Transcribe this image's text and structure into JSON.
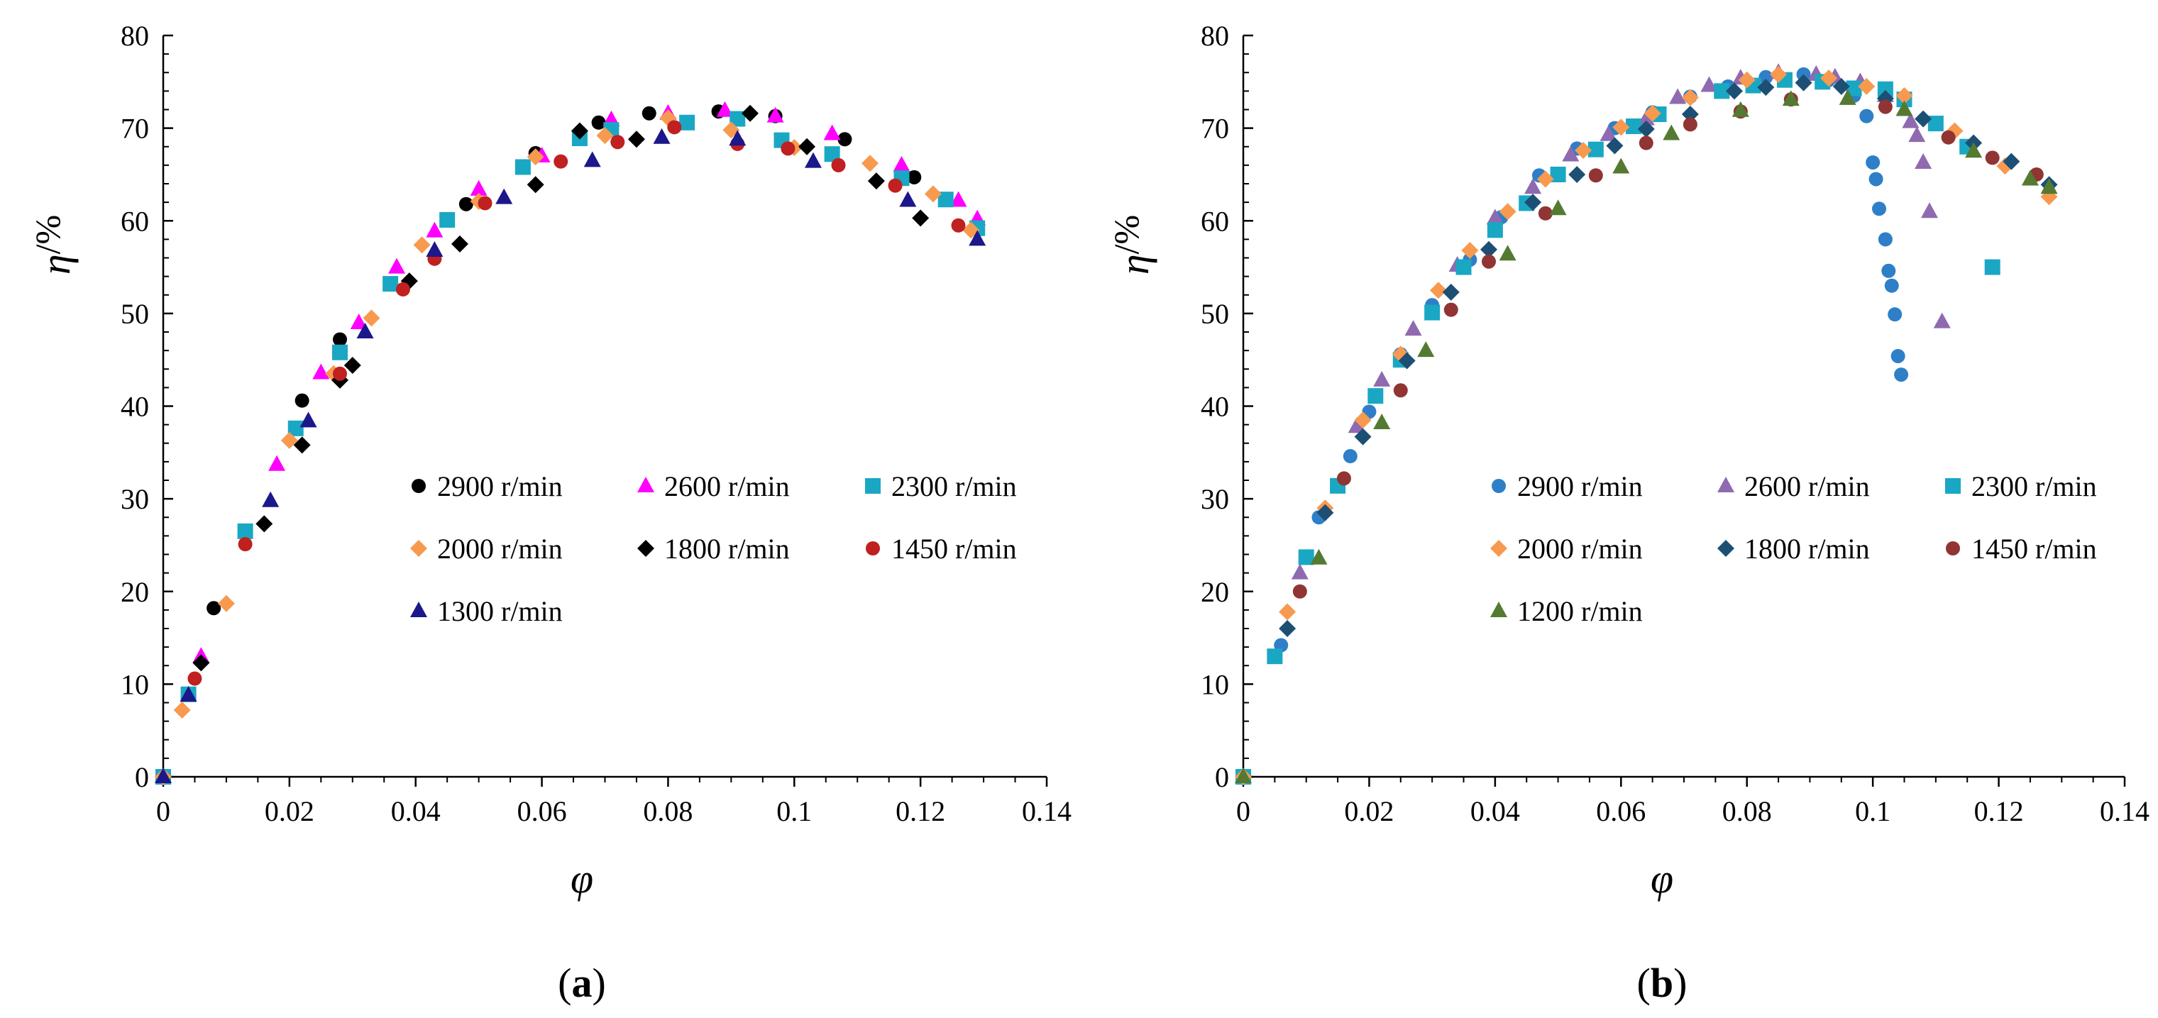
{
  "figure": {
    "colors": {
      "black": "#000000",
      "magenta": "#ff00ff",
      "teal": "#1aa7c4",
      "orange": "#f79a4f",
      "darkred": "#c0201f",
      "navy": "#1c178a",
      "blue": "#2e7fc7",
      "purple": "#8f6ab0",
      "darkblue": "#1d4f74",
      "maroon": "#913434",
      "green": "#547a31"
    }
  },
  "chart_data": [
    {
      "type": "scatter",
      "panel_label": "(a)",
      "panel_letter": "a",
      "xlabel": "φ",
      "ylabel_symbol": "η",
      "ylabel_unit": "/%",
      "xlim": [
        0,
        0.14
      ],
      "ylim": [
        0,
        80
      ],
      "xticks": [
        0,
        0.02,
        0.04,
        0.06,
        0.08,
        0.1,
        0.12,
        0.14
      ],
      "xtick_labels": [
        "0",
        "0.02",
        "0.04",
        "0.06",
        "0.08",
        "0.1",
        "0.12",
        "0.14"
      ],
      "yticks": [
        0,
        10,
        20,
        30,
        40,
        50,
        60,
        70,
        80
      ],
      "ytick_labels": [
        "0",
        "10",
        "20",
        "30",
        "40",
        "50",
        "60",
        "70",
        "80"
      ],
      "series": [
        {
          "name": "2900 r/min",
          "marker": "circle",
          "color": "#000000",
          "x": [
            0,
            0.008,
            0.022,
            0.028,
            0.048,
            0.059,
            0.069,
            0.077,
            0.088,
            0.097,
            0.108,
            0.119
          ],
          "y": [
            0,
            18.2,
            40.6,
            47.2,
            61.8,
            67.3,
            70.6,
            71.6,
            71.8,
            71.3,
            68.8,
            64.7
          ]
        },
        {
          "name": "2600 r/min",
          "marker": "triangle",
          "color": "#ff00ff",
          "x": [
            0,
            0.006,
            0.018,
            0.025,
            0.031,
            0.037,
            0.043,
            0.05,
            0.06,
            0.071,
            0.08,
            0.089,
            0.097,
            0.106,
            0.117,
            0.126,
            0.129
          ],
          "y": [
            0,
            13.0,
            33.7,
            43.6,
            49.0,
            55.0,
            58.9,
            63.4,
            67.0,
            70.9,
            71.6,
            71.9,
            71.3,
            69.4,
            66.0,
            62.2,
            60.2
          ]
        },
        {
          "name": "2300 r/min",
          "marker": "square",
          "color": "#1aa7c4",
          "x": [
            0,
            0.004,
            0.013,
            0.021,
            0.028,
            0.036,
            0.045,
            0.057,
            0.066,
            0.071,
            0.083,
            0.091,
            0.098,
            0.106,
            0.117,
            0.124,
            0.129
          ],
          "y": [
            0,
            8.9,
            26.5,
            37.6,
            45.8,
            53.2,
            60.1,
            65.8,
            68.9,
            69.8,
            70.6,
            71.0,
            68.7,
            67.2,
            64.6,
            62.3,
            59.2
          ]
        },
        {
          "name": "2000 r/min",
          "marker": "diamond",
          "color": "#f79a4f",
          "x": [
            0,
            0.003,
            0.01,
            0.02,
            0.027,
            0.033,
            0.041,
            0.05,
            0.059,
            0.07,
            0.08,
            0.09,
            0.1,
            0.112,
            0.122,
            0.128
          ],
          "y": [
            0,
            7.2,
            18.7,
            36.3,
            43.5,
            49.5,
            57.4,
            62.1,
            66.9,
            69.2,
            71.1,
            69.8,
            67.9,
            66.2,
            62.9,
            59.0
          ]
        },
        {
          "name": "1800 r/min",
          "marker": "diamond",
          "color": "#000000",
          "x": [
            0.006,
            0.016,
            0.022,
            0.028,
            0.03,
            0.039,
            0.047,
            0.059,
            0.066,
            0.075,
            0.093,
            0.102,
            0.113,
            0.12
          ],
          "y": [
            12.3,
            27.3,
            35.8,
            42.8,
            44.4,
            53.5,
            57.5,
            63.9,
            69.7,
            68.8,
            71.6,
            68.0,
            64.3,
            60.3
          ]
        },
        {
          "name": "1450 r/min",
          "marker": "circle",
          "color": "#c0201f",
          "x": [
            0.005,
            0.013,
            0.028,
            0.038,
            0.043,
            0.051,
            0.063,
            0.072,
            0.081,
            0.091,
            0.099,
            0.107,
            0.116,
            0.126
          ],
          "y": [
            10.6,
            25.1,
            43.5,
            52.6,
            55.9,
            61.9,
            66.4,
            68.5,
            70.1,
            68.3,
            67.8,
            66.0,
            63.8,
            59.5
          ]
        },
        {
          "name": "1300 r/min",
          "marker": "triangle",
          "color": "#1c178a",
          "x": [
            0,
            0.004,
            0.017,
            0.023,
            0.032,
            0.043,
            0.054,
            0.068,
            0.079,
            0.091,
            0.103,
            0.118,
            0.129
          ],
          "y": [
            0,
            8.8,
            29.8,
            38.4,
            48.0,
            56.8,
            62.5,
            66.5,
            69.0,
            68.8,
            66.4,
            62.2,
            58.0
          ]
        }
      ],
      "legend": {
        "placement": "center-right",
        "columns": 3
      }
    },
    {
      "type": "scatter",
      "panel_label": "(b)",
      "panel_letter": "b",
      "xlabel": "φ",
      "ylabel_symbol": "η",
      "ylabel_unit": "/%",
      "xlim": [
        0,
        0.14
      ],
      "ylim": [
        0,
        80
      ],
      "xticks": [
        0,
        0.02,
        0.04,
        0.06,
        0.08,
        0.1,
        0.12,
        0.14
      ],
      "xtick_labels": [
        "0",
        "0.02",
        "0.04",
        "0.06",
        "0.08",
        "0.1",
        "0.12",
        "0.14"
      ],
      "yticks": [
        0,
        10,
        20,
        30,
        40,
        50,
        60,
        70,
        80
      ],
      "ytick_labels": [
        "0",
        "10",
        "20",
        "30",
        "40",
        "50",
        "60",
        "70",
        "80"
      ],
      "series": [
        {
          "name": "2900 r/min",
          "marker": "circle",
          "color": "#2e7fc7",
          "x": [
            0,
            0.006,
            0.012,
            0.017,
            0.02,
            0.025,
            0.03,
            0.036,
            0.041,
            0.047,
            0.053,
            0.059,
            0.065,
            0.071,
            0.077,
            0.083,
            0.089,
            0.093,
            0.097,
            0.099,
            0.1,
            0.1005,
            0.101,
            0.102,
            0.1025,
            0.103,
            0.1035,
            0.104,
            0.1045
          ],
          "y": [
            0,
            14.2,
            28.0,
            34.6,
            39.4,
            45.6,
            50.9,
            55.8,
            60.4,
            64.9,
            67.8,
            70.0,
            71.7,
            73.4,
            74.5,
            75.5,
            75.8,
            75.2,
            73.5,
            71.3,
            66.3,
            64.5,
            61.3,
            58.0,
            54.6,
            53.0,
            49.9,
            45.4,
            43.4
          ]
        },
        {
          "name": "2600 r/min",
          "marker": "triangle",
          "color": "#8f6ab0",
          "x": [
            0,
            0.009,
            0.018,
            0.022,
            0.027,
            0.034,
            0.04,
            0.046,
            0.052,
            0.058,
            0.064,
            0.069,
            0.074,
            0.079,
            0.085,
            0.091,
            0.094,
            0.098,
            0.102,
            0.106,
            0.107,
            0.108,
            0.109,
            0.111
          ],
          "y": [
            0,
            22.0,
            37.8,
            42.8,
            48.3,
            55.2,
            60.3,
            63.6,
            67.1,
            69.3,
            71.0,
            73.3,
            74.6,
            75.4,
            76.0,
            75.8,
            75.5,
            75.0,
            73.5,
            70.7,
            69.2,
            66.3,
            61.0,
            49.1
          ]
        },
        {
          "name": "2300 r/min",
          "marker": "square",
          "color": "#1aa7c4",
          "x": [
            0,
            0.005,
            0.01,
            0.015,
            0.021,
            0.025,
            0.03,
            0.035,
            0.04,
            0.045,
            0.05,
            0.056,
            0.062,
            0.066,
            0.076,
            0.081,
            0.086,
            0.092,
            0.097,
            0.102,
            0.105,
            0.11,
            0.115,
            0.119
          ],
          "y": [
            0,
            13.0,
            23.7,
            31.4,
            41.1,
            45.0,
            50.1,
            55.0,
            59.0,
            61.9,
            65.0,
            67.7,
            70.2,
            71.5,
            74.0,
            74.6,
            75.2,
            75.0,
            74.3,
            74.2,
            73.1,
            70.5,
            68.0,
            55.0
          ]
        },
        {
          "name": "2000 r/min",
          "marker": "diamond",
          "color": "#f79a4f",
          "x": [
            0,
            0.007,
            0.013,
            0.019,
            0.025,
            0.031,
            0.036,
            0.042,
            0.048,
            0.054,
            0.06,
            0.065,
            0.071,
            0.08,
            0.085,
            0.093,
            0.099,
            0.105,
            0.113,
            0.121,
            0.128
          ],
          "y": [
            0,
            17.8,
            29.0,
            38.5,
            45.6,
            52.5,
            56.8,
            61.0,
            64.5,
            67.6,
            70.1,
            71.6,
            73.3,
            75.2,
            75.8,
            75.4,
            74.5,
            73.5,
            69.7,
            65.9,
            62.6
          ]
        },
        {
          "name": "1800 r/min",
          "marker": "diamond",
          "color": "#1d4f74",
          "x": [
            0.007,
            0.013,
            0.019,
            0.026,
            0.033,
            0.039,
            0.046,
            0.053,
            0.059,
            0.064,
            0.071,
            0.078,
            0.083,
            0.089,
            0.095,
            0.102,
            0.108,
            0.116,
            0.122,
            0.128
          ],
          "y": [
            16.0,
            28.5,
            36.7,
            44.9,
            52.3,
            56.9,
            62.0,
            65.0,
            68.1,
            69.9,
            71.5,
            74.0,
            74.4,
            74.9,
            74.5,
            73.2,
            71.0,
            68.4,
            66.4,
            63.9
          ]
        },
        {
          "name": "1450 r/min",
          "marker": "circle",
          "color": "#913434",
          "x": [
            0.009,
            0.016,
            0.025,
            0.033,
            0.039,
            0.048,
            0.056,
            0.064,
            0.071,
            0.079,
            0.087,
            0.102,
            0.112,
            0.119,
            0.126
          ],
          "y": [
            20.0,
            32.2,
            41.7,
            50.4,
            55.6,
            60.8,
            64.9,
            68.4,
            70.4,
            71.8,
            73.1,
            72.3,
            69.0,
            66.8,
            65.0
          ]
        },
        {
          "name": "1200 r/min",
          "marker": "triangle",
          "color": "#547a31",
          "x": [
            0,
            0.012,
            0.022,
            0.029,
            0.042,
            0.05,
            0.06,
            0.068,
            0.079,
            0.087,
            0.096,
            0.105,
            0.116,
            0.125,
            0.128
          ],
          "y": [
            0,
            23.6,
            38.2,
            46.0,
            56.4,
            61.3,
            65.8,
            69.4,
            71.9,
            73.1,
            73.2,
            72.0,
            67.5,
            64.5,
            63.6
          ]
        }
      ],
      "legend": {
        "placement": "center-right",
        "columns": 3
      }
    }
  ]
}
